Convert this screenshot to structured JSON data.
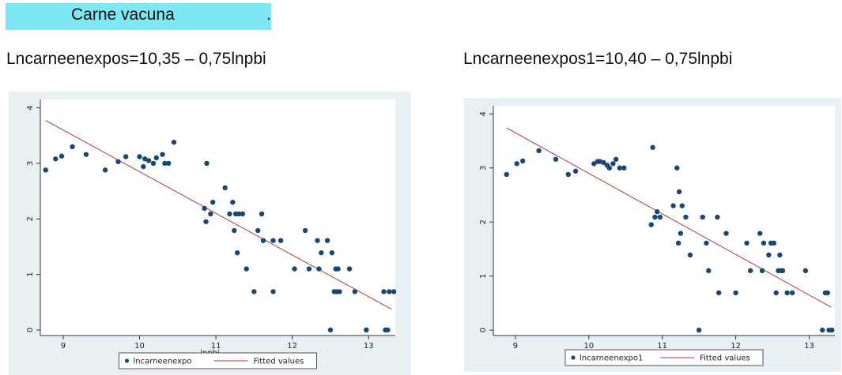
{
  "header": {
    "title": "Carne vacuna",
    "trailing": "."
  },
  "equations": {
    "left": "Lncarneenexpos=10,35 – 0,75lnpbi",
    "right": "Lncarneenexpos1=10,40 – 0,75lnpbi"
  },
  "colors": {
    "band": "#7fe7f3",
    "panel": "#e9f0f4",
    "points": "#1a476f",
    "fit": "#b0373b"
  },
  "chart_data": [
    {
      "type": "scatter",
      "xlabel": "lnpbi",
      "ylabel": "",
      "xlim": [
        8.7,
        13.35
      ],
      "ylim": [
        -0.1,
        4.15
      ],
      "xticks": [
        9,
        10,
        11,
        12,
        13
      ],
      "yticks": [
        0,
        1,
        2,
        3,
        4
      ],
      "series": [
        {
          "name": "lncarneenexpo",
          "kind": "points",
          "points": [
            [
              8.77,
              2.88
            ],
            [
              8.9,
              3.08
            ],
            [
              8.98,
              3.13
            ],
            [
              9.12,
              3.3
            ],
            [
              9.3,
              3.16
            ],
            [
              9.55,
              2.88
            ],
            [
              9.72,
              3.03
            ],
            [
              9.82,
              3.12
            ],
            [
              10.0,
              3.12
            ],
            [
              10.05,
              2.94
            ],
            [
              10.07,
              3.08
            ],
            [
              10.12,
              3.05
            ],
            [
              10.18,
              3.0
            ],
            [
              10.22,
              3.1
            ],
            [
              10.3,
              3.16
            ],
            [
              10.33,
              3.0
            ],
            [
              10.38,
              3.0
            ],
            [
              10.45,
              3.38
            ],
            [
              10.85,
              2.19
            ],
            [
              10.87,
              1.95
            ],
            [
              10.88,
              3.0
            ],
            [
              10.93,
              2.09
            ],
            [
              10.96,
              2.3
            ],
            [
              11.12,
              2.56
            ],
            [
              11.18,
              2.09
            ],
            [
              11.22,
              2.3
            ],
            [
              11.24,
              1.79
            ],
            [
              11.26,
              2.09
            ],
            [
              11.28,
              1.39
            ],
            [
              11.3,
              2.09
            ],
            [
              11.35,
              2.09
            ],
            [
              11.4,
              1.1
            ],
            [
              11.5,
              0.69
            ],
            [
              11.55,
              1.79
            ],
            [
              11.6,
              2.09
            ],
            [
              11.62,
              1.61
            ],
            [
              11.75,
              0.69
            ],
            [
              11.75,
              1.61
            ],
            [
              11.85,
              1.61
            ],
            [
              12.03,
              1.1
            ],
            [
              12.17,
              1.79
            ],
            [
              12.22,
              1.1
            ],
            [
              12.33,
              1.61
            ],
            [
              12.35,
              1.1
            ],
            [
              12.38,
              1.39
            ],
            [
              12.46,
              1.61
            ],
            [
              12.5,
              0.0
            ],
            [
              12.52,
              1.39
            ],
            [
              12.55,
              0.69
            ],
            [
              12.57,
              1.1
            ],
            [
              12.58,
              0.69
            ],
            [
              12.6,
              1.1
            ],
            [
              12.62,
              0.69
            ],
            [
              12.75,
              1.1
            ],
            [
              12.82,
              0.69
            ],
            [
              12.97,
              0.0
            ],
            [
              13.2,
              0.69
            ],
            [
              13.22,
              0.0
            ],
            [
              13.25,
              0.0
            ],
            [
              13.27,
              0.69
            ],
            [
              13.33,
              0.69
            ]
          ]
        },
        {
          "name": "Fitted values",
          "kind": "line",
          "intercept": 10.35,
          "slope": -0.75,
          "x": [
            8.77,
            13.3
          ]
        }
      ],
      "legend": "bottom"
    },
    {
      "type": "scatter",
      "xlabel": "lnpbi",
      "ylabel": "",
      "xlim": [
        8.7,
        13.35
      ],
      "ylim": [
        -0.1,
        4.15
      ],
      "xticks": [
        9,
        10,
        11,
        12,
        13
      ],
      "yticks": [
        0,
        1,
        2,
        3,
        4
      ],
      "series": [
        {
          "name": "lncarneenexpo1",
          "kind": "points",
          "points": [
            [
              8.88,
              2.88
            ],
            [
              9.02,
              3.08
            ],
            [
              9.1,
              3.13
            ],
            [
              9.32,
              3.32
            ],
            [
              9.55,
              3.16
            ],
            [
              9.72,
              2.88
            ],
            [
              9.82,
              2.94
            ],
            [
              10.07,
              3.08
            ],
            [
              10.12,
              3.12
            ],
            [
              10.15,
              3.12
            ],
            [
              10.2,
              3.1
            ],
            [
              10.25,
              3.05
            ],
            [
              10.28,
              3.0
            ],
            [
              10.33,
              3.08
            ],
            [
              10.37,
              3.16
            ],
            [
              10.42,
              3.0
            ],
            [
              10.48,
              3.0
            ],
            [
              10.85,
              1.95
            ],
            [
              10.87,
              3.38
            ],
            [
              10.9,
              2.09
            ],
            [
              10.93,
              2.19
            ],
            [
              10.97,
              2.09
            ],
            [
              11.15,
              2.3
            ],
            [
              11.2,
              3.0
            ],
            [
              11.22,
              1.61
            ],
            [
              11.23,
              2.56
            ],
            [
              11.25,
              1.79
            ],
            [
              11.27,
              2.3
            ],
            [
              11.32,
              2.09
            ],
            [
              11.38,
              1.39
            ],
            [
              11.5,
              0.0
            ],
            [
              11.55,
              2.09
            ],
            [
              11.6,
              1.61
            ],
            [
              11.63,
              1.1
            ],
            [
              11.75,
              2.09
            ],
            [
              11.77,
              0.69
            ],
            [
              11.87,
              1.79
            ],
            [
              12.0,
              0.69
            ],
            [
              12.15,
              1.61
            ],
            [
              12.2,
              1.1
            ],
            [
              12.33,
              1.79
            ],
            [
              12.36,
              1.1
            ],
            [
              12.38,
              1.61
            ],
            [
              12.45,
              1.39
            ],
            [
              12.48,
              1.61
            ],
            [
              12.52,
              1.61
            ],
            [
              12.55,
              0.69
            ],
            [
              12.58,
              1.1
            ],
            [
              12.6,
              1.39
            ],
            [
              12.62,
              1.1
            ],
            [
              12.64,
              1.1
            ],
            [
              12.7,
              0.69
            ],
            [
              12.77,
              0.69
            ],
            [
              12.95,
              1.1
            ],
            [
              13.18,
              0.0
            ],
            [
              13.22,
              0.69
            ],
            [
              13.25,
              0.69
            ],
            [
              13.27,
              0.0
            ],
            [
              13.31,
              0.0
            ]
          ]
        },
        {
          "name": "Fitted values",
          "kind": "line",
          "intercept": 10.4,
          "slope": -0.75,
          "x": [
            8.88,
            13.3
          ]
        }
      ],
      "legend": "bottom"
    }
  ]
}
